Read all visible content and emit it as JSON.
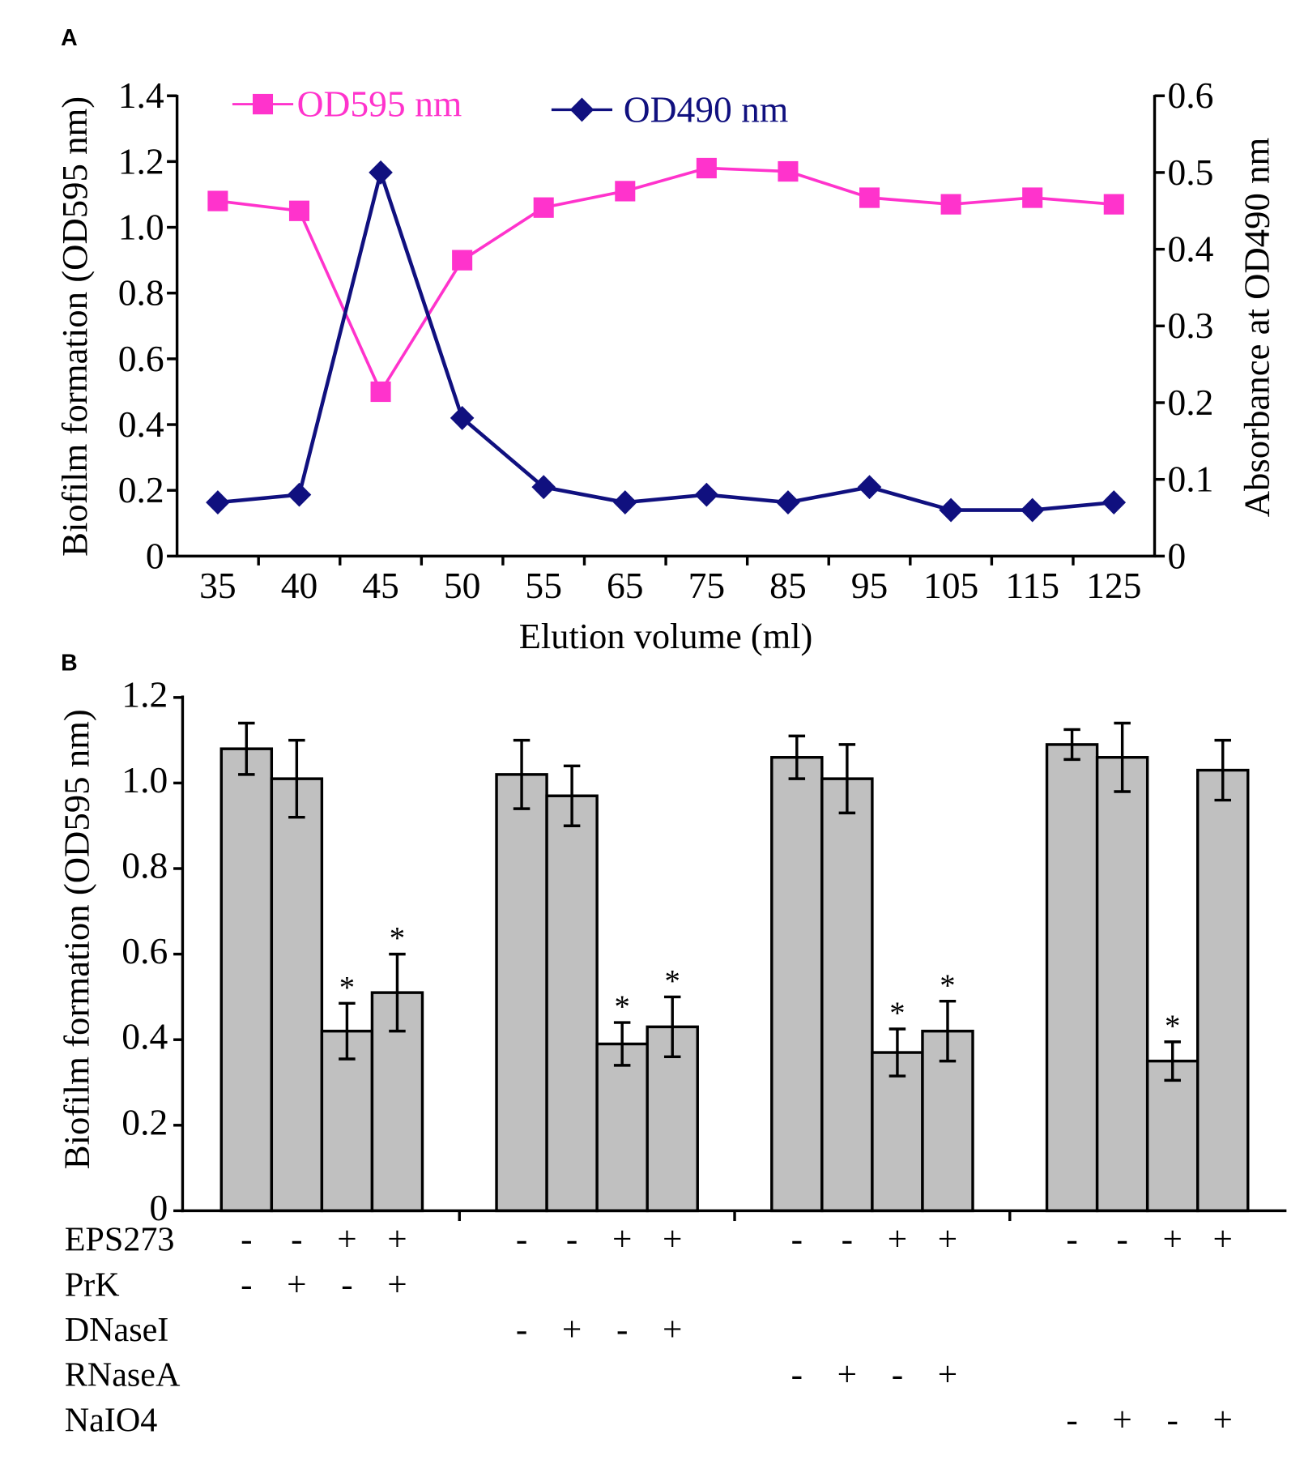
{
  "panels": {
    "a": "A",
    "b": "B"
  },
  "chart_data": [
    {
      "type": "line",
      "xlabel": "Elution volume (ml)",
      "ylabel": "Biofilm formation (OD595 nm)",
      "y2label": "Absorbance at OD490 nm",
      "categories": [
        "35",
        "40",
        "45",
        "50",
        "55",
        "65",
        "75",
        "85",
        "95",
        "105",
        "115",
        "125"
      ],
      "ylim": [
        0,
        1.4
      ],
      "yticks": [
        "0",
        "0.2",
        "0.4",
        "0.6",
        "0.8",
        "1.0",
        "1.2",
        "1.4"
      ],
      "y2lim": [
        0,
        0.6
      ],
      "y2ticks": [
        "0",
        "0.1",
        "0.2",
        "0.3",
        "0.4",
        "0.5",
        "0.6"
      ],
      "grid": false,
      "legend": "top",
      "series": [
        {
          "name": "OD595 nm",
          "secondary_axis": false,
          "color": "#ff33cc",
          "values": [
            1.08,
            1.05,
            0.5,
            0.9,
            1.06,
            1.11,
            1.18,
            1.17,
            1.09,
            1.07,
            1.09,
            1.07
          ]
        },
        {
          "name": "OD490 nm",
          "secondary_axis": true,
          "color": "#10107f",
          "values": [
            0.07,
            0.08,
            0.5,
            0.18,
            0.09,
            0.07,
            0.08,
            0.07,
            0.09,
            0.06,
            0.06,
            0.07
          ]
        }
      ]
    },
    {
      "type": "bar",
      "ylabel": "Biofilm formation (OD595 nm)",
      "ylim": [
        0,
        1.2
      ],
      "yticks": [
        "0",
        "0.2",
        "0.4",
        "0.6",
        "0.8",
        "1.0",
        "1.2"
      ],
      "grid": false,
      "bar_color": "#c0c0c0",
      "groups": [
        {
          "values": [
            1.08,
            1.01,
            0.42,
            0.51
          ],
          "errors": [
            0.06,
            0.09,
            0.065,
            0.09
          ],
          "significance": [
            null,
            null,
            "*",
            "*"
          ]
        },
        {
          "values": [
            1.02,
            0.97,
            0.39,
            0.43
          ],
          "errors": [
            0.08,
            0.07,
            0.05,
            0.07
          ],
          "significance": [
            null,
            null,
            "*",
            "*"
          ]
        },
        {
          "values": [
            1.06,
            1.01,
            0.37,
            0.42
          ],
          "errors": [
            0.05,
            0.08,
            0.055,
            0.07
          ],
          "significance": [
            null,
            null,
            "*",
            "*"
          ]
        },
        {
          "values": [
            1.09,
            1.06,
            0.35,
            1.03
          ],
          "errors": [
            0.035,
            0.08,
            0.045,
            0.07
          ],
          "significance": [
            null,
            null,
            "*",
            null
          ]
        }
      ],
      "treatments": [
        {
          "name": "EPS273",
          "marks": [
            [
              "-",
              "-",
              "+",
              "+"
            ],
            [
              "-",
              "-",
              "+",
              "+"
            ],
            [
              "-",
              "-",
              "+",
              "+"
            ],
            [
              "-",
              "-",
              "+",
              "+"
            ]
          ]
        },
        {
          "name": "PrK",
          "marks": [
            [
              "-",
              "+",
              "-",
              "+"
            ],
            null,
            null,
            null
          ]
        },
        {
          "name": "DNaseI",
          "marks": [
            null,
            [
              "-",
              "+",
              "-",
              "+"
            ],
            null,
            null
          ]
        },
        {
          "name": "RNaseA",
          "marks": [
            null,
            null,
            [
              "-",
              "+",
              "-",
              "+"
            ],
            null
          ]
        },
        {
          "name": "NaIO4",
          "marks": [
            null,
            null,
            null,
            [
              "-",
              "+",
              "-",
              "+"
            ]
          ]
        }
      ]
    }
  ]
}
